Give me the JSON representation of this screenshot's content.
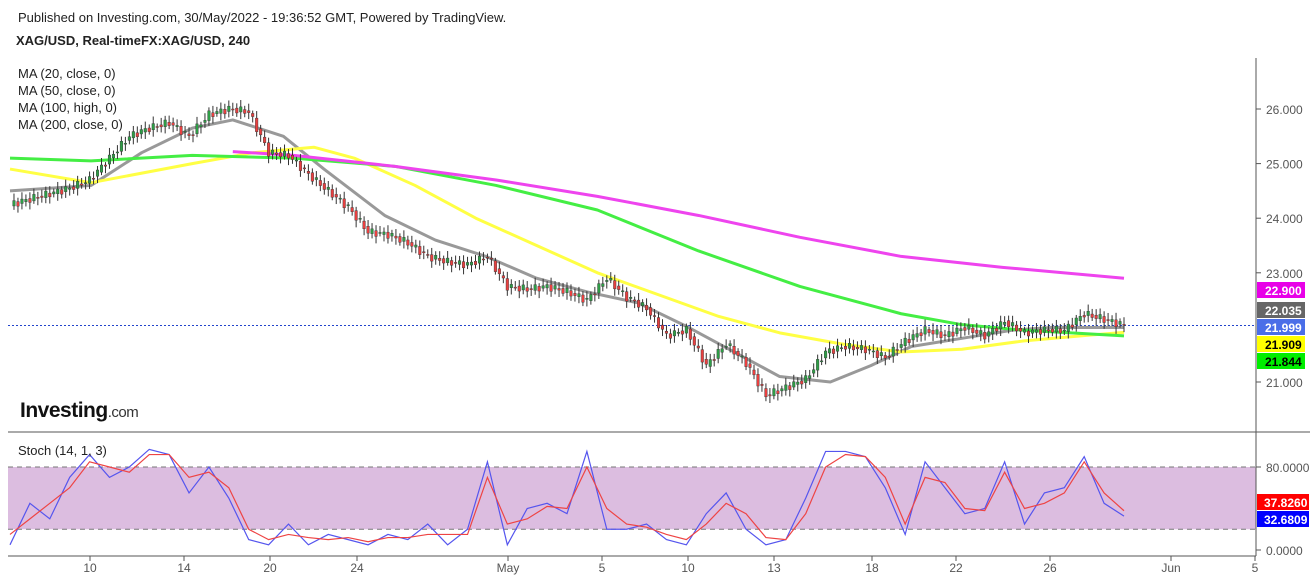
{
  "header": {
    "published": "Published on Investing.com, 30/May/2022 - 19:36:52 GMT, Powered by TradingView.",
    "symbol": "XAG/USD, Real-timeFX:XAG/USD, 240"
  },
  "logo": {
    "main": "Investing",
    "suffix": ".com"
  },
  "chart_data": [
    {
      "type": "candlestick",
      "indicators": [
        {
          "name": "MA (20, close, 0)",
          "color": "#999999",
          "values": [
            [
              0,
              24.5
            ],
            [
              8,
              24.6
            ],
            [
              13,
              25.2
            ],
            [
              18,
              25.65
            ],
            [
              22,
              25.8
            ],
            [
              27,
              25.5
            ],
            [
              31,
              24.9
            ],
            [
              37,
              24.05
            ],
            [
              42,
              23.6
            ],
            [
              47,
              23.3
            ],
            [
              52,
              22.9
            ],
            [
              57,
              22.65
            ],
            [
              62,
              22.45
            ],
            [
              67,
              22.0
            ],
            [
              72,
              21.5
            ],
            [
              76,
              21.1
            ],
            [
              81,
              21.0
            ],
            [
              85,
              21.3
            ],
            [
              89,
              21.65
            ],
            [
              94,
              21.8
            ],
            [
              99,
              21.95
            ],
            [
              103,
              22.0
            ],
            [
              110,
              21.999
            ]
          ]
        },
        {
          "name": "MA (50, close, 0)",
          "color": "#ffff44",
          "values": [
            [
              0,
              24.9
            ],
            [
              8,
              24.65
            ],
            [
              18,
              25.0
            ],
            [
              24,
              25.2
            ],
            [
              30,
              25.3
            ],
            [
              34,
              25.1
            ],
            [
              40,
              24.6
            ],
            [
              46,
              24.0
            ],
            [
              52,
              23.5
            ],
            [
              58,
              23.0
            ],
            [
              64,
              22.6
            ],
            [
              70,
              22.2
            ],
            [
              76,
              21.9
            ],
            [
              82,
              21.7
            ],
            [
              88,
              21.55
            ],
            [
              94,
              21.6
            ],
            [
              100,
              21.75
            ],
            [
              106,
              21.85
            ],
            [
              110,
              21.909
            ]
          ]
        },
        {
          "name": "MA (100, high, 0)",
          "color": "#44ee44",
          "values": [
            [
              0,
              25.1
            ],
            [
              8,
              25.05
            ],
            [
              18,
              25.15
            ],
            [
              28,
              25.1
            ],
            [
              38,
              24.95
            ],
            [
              48,
              24.6
            ],
            [
              58,
              24.15
            ],
            [
              68,
              23.4
            ],
            [
              78,
              22.75
            ],
            [
              88,
              22.25
            ],
            [
              94,
              22.05
            ],
            [
              100,
              21.95
            ],
            [
              110,
              21.844
            ]
          ]
        },
        {
          "name": "MA (200, close, 0)",
          "color": "#ee44ee",
          "values": [
            [
              22,
              25.22
            ],
            [
              28,
              25.15
            ],
            [
              38,
              24.95
            ],
            [
              48,
              24.7
            ],
            [
              58,
              24.4
            ],
            [
              68,
              24.05
            ],
            [
              78,
              23.65
            ],
            [
              88,
              23.3
            ],
            [
              98,
              23.1
            ],
            [
              110,
              22.9
            ]
          ]
        }
      ],
      "closes": [
        24.25,
        24.35,
        24.45,
        24.55,
        24.7,
        25.1,
        25.5,
        25.65,
        25.75,
        25.5,
        25.9,
        26.0,
        25.95,
        25.2,
        25.15,
        24.8,
        24.5,
        24.2,
        23.75,
        23.7,
        23.55,
        23.3,
        23.2,
        23.15,
        23.3,
        22.75,
        22.7,
        22.75,
        22.65,
        22.5,
        22.9,
        22.55,
        22.35,
        21.85,
        21.95,
        21.3,
        21.7,
        21.35,
        20.75,
        20.9,
        21.05,
        21.55,
        21.65,
        21.6,
        21.45,
        21.75,
        21.95,
        21.85,
        22.0,
        21.85,
        22.1,
        21.9,
        21.95,
        21.95,
        22.25,
        22.15,
        22.035
      ],
      "y_ticks": [
        "26.000",
        "25.000",
        "24.000",
        "23.000",
        "21.000"
      ],
      "last_labels": [
        {
          "value": "22.900",
          "color": "#e800e8"
        },
        {
          "value": "22.035",
          "color": "#666666"
        },
        {
          "value": "21.999",
          "color": "#4a6ee8"
        },
        {
          "value": "21.909",
          "color": "#ffff00"
        },
        {
          "value": "21.844",
          "color": "#00ee00"
        }
      ],
      "last_price": 22.035,
      "up_color": "#2e9e46",
      "down_color": "#e84040"
    },
    {
      "type": "line",
      "title": "Stoch (14, 1, 3)",
      "ylim": [
        0,
        100
      ],
      "band": [
        20,
        80
      ],
      "band_color": "#dcbde0",
      "y_ticks": [
        "80.0000",
        "0.0000"
      ],
      "series": [
        {
          "color": "#5555ee",
          "values": [
            5,
            45,
            30,
            70,
            92,
            70,
            80,
            97,
            92,
            55,
            80,
            50,
            10,
            5,
            25,
            5,
            15,
            10,
            5,
            15,
            10,
            25,
            5,
            20,
            85,
            5,
            40,
            45,
            35,
            95,
            20,
            20,
            25,
            10,
            5,
            35,
            55,
            20,
            5,
            10,
            50,
            95,
            95,
            90,
            60,
            15,
            85,
            60,
            35,
            40,
            85,
            25,
            55,
            60,
            90,
            45,
            32.6809
          ]
        },
        {
          "color": "#ee4444",
          "values": [
            15,
            30,
            45,
            60,
            85,
            80,
            75,
            92,
            92,
            70,
            75,
            60,
            20,
            10,
            15,
            12,
            10,
            12,
            8,
            12,
            12,
            15,
            15,
            15,
            70,
            25,
            30,
            42,
            40,
            80,
            40,
            25,
            22,
            15,
            10,
            25,
            45,
            35,
            12,
            10,
            35,
            80,
            92,
            90,
            70,
            25,
            70,
            65,
            40,
            38,
            75,
            40,
            45,
            55,
            85,
            55,
            37.826
          ]
        }
      ],
      "last_labels": [
        {
          "value": "37.8260",
          "color": "#ff0000"
        },
        {
          "value": "32.6809",
          "color": "#0000ff"
        }
      ]
    }
  ],
  "x_ticks": [
    "10",
    "14",
    "20",
    "24",
    "May",
    "5",
    "10",
    "13",
    "18",
    "22",
    "26",
    "Jun",
    "5"
  ]
}
